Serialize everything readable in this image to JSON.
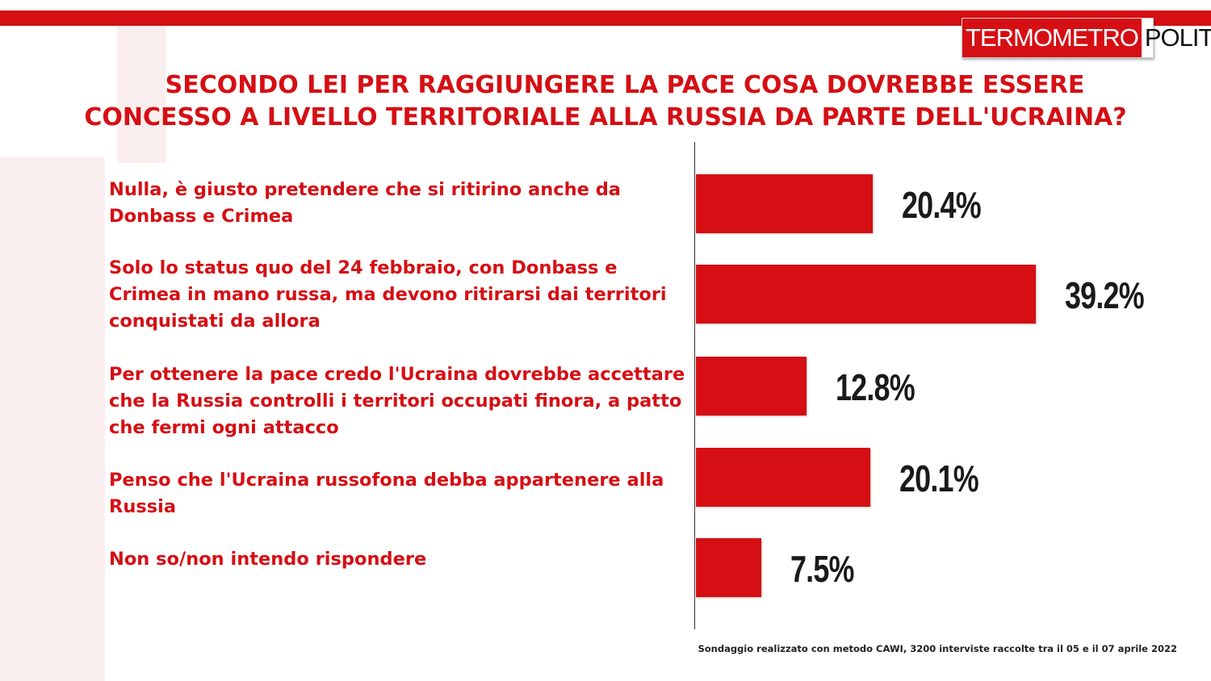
{
  "header": {
    "logo_left": "TERMOMETRO",
    "logo_right": "POLITICO"
  },
  "chart_data": {
    "type": "bar",
    "orientation": "horizontal",
    "title_line1": "SECONDO LEI PER RAGGIUNGERE LA PACE COSA DOVREBBE ESSERE",
    "title_line2": "CONCESSO A LIVELLO TERRITORIALE ALLA RUSSIA DA PARTE DELL'UCRAINA?",
    "categories": [
      "Nulla, è giusto pretendere che si ritirino anche da Donbass e Crimea",
      "Solo lo status quo del 24 febbraio, con Donbass e Crimea in mano russa, ma devono ritirarsi dai territori conquistati da allora",
      "Per ottenere la pace credo l'Ucraina dovrebbe accettare che la Russia controlli i territori occupati finora, a patto che fermi ogni attacco",
      "Penso che l'Ucraina russofona debba appartenere alla Russia",
      "Non so/non intendo rispondere"
    ],
    "values": [
      20.4,
      39.2,
      12.8,
      20.1,
      7.5
    ],
    "value_labels": [
      "20.4%",
      "39.2%",
      "12.8%",
      "20.1%",
      "7.5%"
    ],
    "xlim": [
      0,
      40
    ],
    "grid": false,
    "legend": "none",
    "bar_color": "#d50f14"
  },
  "footnote": "Sondaggio realizzato con metodo CAWI, 3200 interviste raccolte tra il 05 e il 07 aprile 2022"
}
